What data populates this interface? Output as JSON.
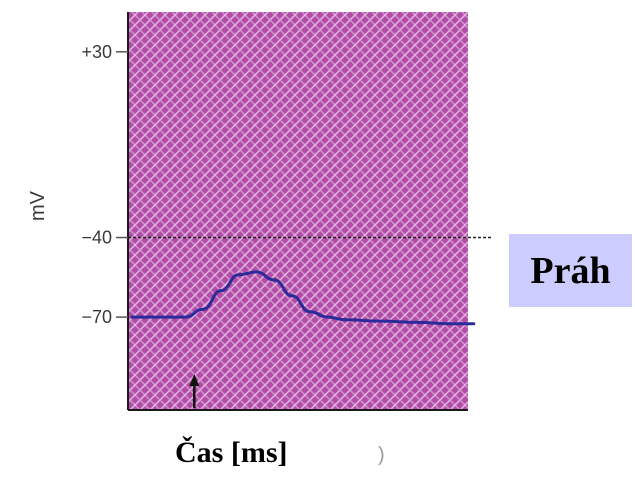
{
  "chart_data": {
    "type": "line",
    "title": "",
    "xlabel": "Čas [ms]",
    "ylabel": "mV",
    "yticks": [
      "+30",
      "−40",
      "−70"
    ],
    "ytick_values": [
      30,
      -40,
      -70
    ],
    "ylim": [
      -105,
      45
    ],
    "xlim": [
      0,
      10
    ],
    "x": [
      0,
      1,
      1.5,
      2,
      2.5,
      3,
      3.5,
      4,
      4.5,
      5,
      5.5,
      6,
      7,
      8,
      9,
      9.6
    ],
    "series": [
      {
        "values": [
          -70,
          -70,
          -70,
          -67,
          -60,
          -54,
          -53,
          -56,
          -62,
          -68,
          -70,
          -71,
          -71.5,
          -72,
          -72.5,
          -72.5
        ]
      }
    ],
    "threshold": {
      "value": -40,
      "label": "Práh"
    },
    "stimulus_marker_x": 1.75,
    "stray_mark": ")",
    "grid": false,
    "colors": {
      "plot_background": "#b24ca8",
      "hatch": "#e8c4e4",
      "series_line": "#2a2a9a",
      "threshold_line": "#222222",
      "axis": "#1a1a1a",
      "label_box": "#ccccff"
    }
  }
}
